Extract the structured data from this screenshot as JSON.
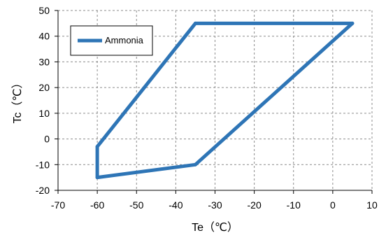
{
  "chart_data": {
    "type": "line",
    "title": "",
    "xlabel": "Te（℃）",
    "ylabel": "Tc（℃）",
    "xlim": [
      -70,
      10
    ],
    "ylim": [
      -20,
      50
    ],
    "x_ticks": [
      -70,
      -60,
      -50,
      -40,
      -30,
      -20,
      -10,
      0,
      10
    ],
    "y_ticks": [
      -20,
      -10,
      0,
      10,
      20,
      30,
      40,
      50
    ],
    "grid": true,
    "legend_position": "top-left",
    "series": [
      {
        "name": "Ammonia",
        "color": "#2E75B6",
        "closed": true,
        "points": [
          {
            "x": -60,
            "y": -3
          },
          {
            "x": -35,
            "y": 45
          },
          {
            "x": 5,
            "y": 45
          },
          {
            "x": -35,
            "y": -10
          },
          {
            "x": -60,
            "y": -15
          }
        ]
      }
    ]
  }
}
